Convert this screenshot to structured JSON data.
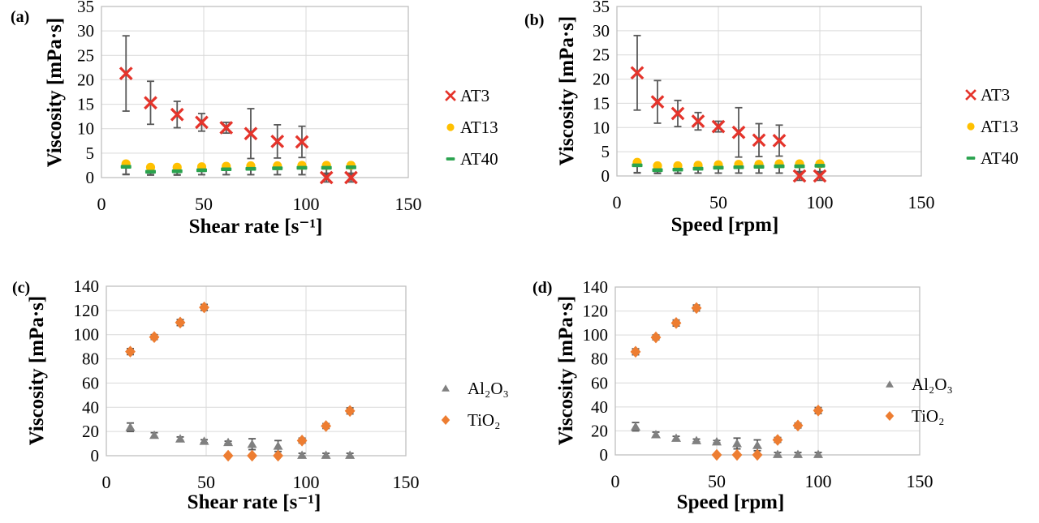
{
  "figure": {
    "background": "#ffffff",
    "grid_color": "#d9d9d9",
    "border_color": "#bfbfbf",
    "error_bar_color": "#595959",
    "text_color": "#000000"
  },
  "chart_data": [
    {
      "id": "a",
      "type": "scatter",
      "panel_label": "(a)",
      "xlabel": "Shear rate [s⁻¹]",
      "ylabel": "Viscosity [mPa·s]",
      "xlim": [
        0,
        150
      ],
      "ylim": [
        0,
        35
      ],
      "x_ticks": [
        0,
        50,
        100,
        150
      ],
      "y_ticks": [
        0,
        5,
        10,
        15,
        20,
        25,
        30,
        35
      ],
      "grid": true,
      "legend_position": "right",
      "series": [
        {
          "name": "AT3",
          "marker": "x-cross",
          "color": "#e5342b",
          "err_mode": "both",
          "x": [
            12,
            24,
            37,
            49,
            61,
            73,
            86,
            98,
            110,
            122
          ],
          "y": [
            21.3,
            15.3,
            12.9,
            11.3,
            10.2,
            9.0,
            7.4,
            7.3,
            0,
            0
          ],
          "yerr": [
            7.7,
            4.4,
            2.7,
            1.8,
            1.1,
            5.1,
            3.4,
            3.2,
            0.9,
            0.9
          ]
        },
        {
          "name": "AT13",
          "marker": "circle",
          "color": "#ffc000",
          "err_mode": "minus",
          "x": [
            12,
            24,
            37,
            49,
            61,
            73,
            86,
            98,
            110,
            122
          ],
          "y": [
            2.8,
            2.1,
            2.1,
            2.2,
            2.3,
            2.4,
            2.4,
            2.5,
            2.5,
            2.5
          ],
          "yerr": [
            2.1,
            1.5,
            1.5,
            1.6,
            1.7,
            1.8,
            1.8,
            1.9,
            1.9,
            1.9
          ]
        },
        {
          "name": "AT40",
          "marker": "dash",
          "color": "#2aa34f",
          "err_mode": "minus",
          "x": [
            12,
            24,
            37,
            49,
            61,
            73,
            86,
            98,
            110,
            122
          ],
          "y": [
            2.2,
            1.2,
            1.3,
            1.5,
            1.7,
            1.8,
            1.9,
            2.0,
            2.0,
            2.1
          ],
          "yerr": [
            1.6,
            0.7,
            0.8,
            0.9,
            1.1,
            1.2,
            1.3,
            1.4,
            1.4,
            1.5
          ]
        }
      ]
    },
    {
      "id": "b",
      "type": "scatter",
      "panel_label": "(b)",
      "xlabel": "Speed [rpm]",
      "ylabel": "Viscosity [mPa·s]",
      "xlim": [
        0,
        150
      ],
      "ylim": [
        0,
        35
      ],
      "x_ticks": [
        0,
        50,
        100,
        150
      ],
      "y_ticks": [
        0,
        5,
        10,
        15,
        20,
        25,
        30,
        35
      ],
      "grid": true,
      "legend_position": "right",
      "series": [
        {
          "name": "AT3",
          "marker": "x-cross",
          "color": "#e5342b",
          "err_mode": "both",
          "x": [
            10,
            20,
            30,
            40,
            50,
            60,
            70,
            80,
            90,
            100
          ],
          "y": [
            21.3,
            15.3,
            12.9,
            11.3,
            10.2,
            9.0,
            7.4,
            7.3,
            0,
            0
          ],
          "yerr": [
            7.7,
            4.4,
            2.7,
            1.8,
            1.1,
            5.1,
            3.4,
            3.2,
            0.9,
            0.9
          ]
        },
        {
          "name": "AT13",
          "marker": "circle",
          "color": "#ffc000",
          "err_mode": "minus",
          "x": [
            10,
            20,
            30,
            40,
            50,
            60,
            70,
            80,
            90,
            100
          ],
          "y": [
            2.8,
            2.1,
            2.1,
            2.2,
            2.3,
            2.4,
            2.4,
            2.5,
            2.5,
            2.5
          ],
          "yerr": [
            2.1,
            1.5,
            1.5,
            1.6,
            1.7,
            1.8,
            1.8,
            1.9,
            1.9,
            1.9
          ]
        },
        {
          "name": "AT40",
          "marker": "dash",
          "color": "#2aa34f",
          "err_mode": "minus",
          "x": [
            10,
            20,
            30,
            40,
            50,
            60,
            70,
            80,
            90,
            100
          ],
          "y": [
            2.2,
            1.2,
            1.3,
            1.5,
            1.7,
            1.8,
            1.9,
            2.0,
            2.0,
            2.1
          ],
          "yerr": [
            1.6,
            0.7,
            0.8,
            0.9,
            1.1,
            1.2,
            1.3,
            1.4,
            1.4,
            1.5
          ]
        }
      ]
    },
    {
      "id": "c",
      "type": "scatter",
      "panel_label": "(c)",
      "xlabel": "Shear rate [s⁻¹]",
      "ylabel": "Viscosity [mPa·s]",
      "xlim": [
        0,
        150
      ],
      "ylim": [
        0,
        140
      ],
      "x_ticks": [
        0,
        50,
        100,
        150
      ],
      "y_ticks": [
        0,
        20,
        40,
        60,
        80,
        100,
        120,
        140
      ],
      "grid": true,
      "legend_position": "right",
      "series": [
        {
          "name": "Al₂O₃",
          "marker": "triangle",
          "color": "#808080",
          "err_mode": "both",
          "x": [
            12,
            24,
            37,
            49,
            61,
            73,
            86,
            98,
            110,
            122
          ],
          "y": [
            23.5,
            17,
            14,
            12,
            11,
            9.5,
            8,
            0.5,
            0.5,
            0.5
          ],
          "yerr": [
            3.5,
            2,
            1.5,
            1.2,
            1,
            4.5,
            4.5,
            1.5,
            1.5,
            1.5
          ]
        },
        {
          "name": "TiO₂",
          "marker": "diamond",
          "color": "#ed7d31",
          "err_mode": "both",
          "x": [
            12,
            24,
            37,
            49,
            61,
            73,
            86,
            98,
            110,
            122
          ],
          "y": [
            86,
            98,
            110,
            122.5,
            0,
            0,
            0,
            12.5,
            24.5,
            37
          ],
          "yerr": [
            2.5,
            2,
            2.5,
            2.5,
            0.8,
            0.8,
            0.8,
            2,
            2,
            2.5
          ]
        }
      ]
    },
    {
      "id": "d",
      "type": "scatter",
      "panel_label": "(d)",
      "xlabel": "Speed [rpm]",
      "ylabel": "Viscosity [mPa·s]",
      "xlim": [
        0,
        150
      ],
      "ylim": [
        0,
        140
      ],
      "x_ticks": [
        0,
        50,
        100,
        150
      ],
      "y_ticks": [
        0,
        20,
        40,
        60,
        80,
        100,
        120,
        140
      ],
      "grid": true,
      "legend_position": "right",
      "series": [
        {
          "name": "Al₂O₃",
          "marker": "triangle",
          "color": "#808080",
          "err_mode": "both",
          "x": [
            10,
            20,
            30,
            40,
            50,
            60,
            70,
            80,
            90,
            100
          ],
          "y": [
            23.5,
            17,
            14,
            12,
            11,
            9.5,
            8,
            0.5,
            0.5,
            0.5
          ],
          "yerr": [
            3.5,
            2,
            1.5,
            1.2,
            1,
            4.5,
            4.5,
            1.5,
            1.5,
            1.5
          ]
        },
        {
          "name": "TiO₂",
          "marker": "diamond",
          "color": "#ed7d31",
          "err_mode": "both",
          "x": [
            10,
            20,
            30,
            40,
            50,
            60,
            70,
            80,
            90,
            100
          ],
          "y": [
            86,
            98,
            110,
            122.5,
            0,
            0,
            0,
            12.5,
            24.5,
            37
          ],
          "yerr": [
            2.5,
            2,
            2.5,
            2.5,
            0.8,
            0.8,
            0.8,
            2,
            2,
            2.5
          ]
        }
      ]
    }
  ]
}
